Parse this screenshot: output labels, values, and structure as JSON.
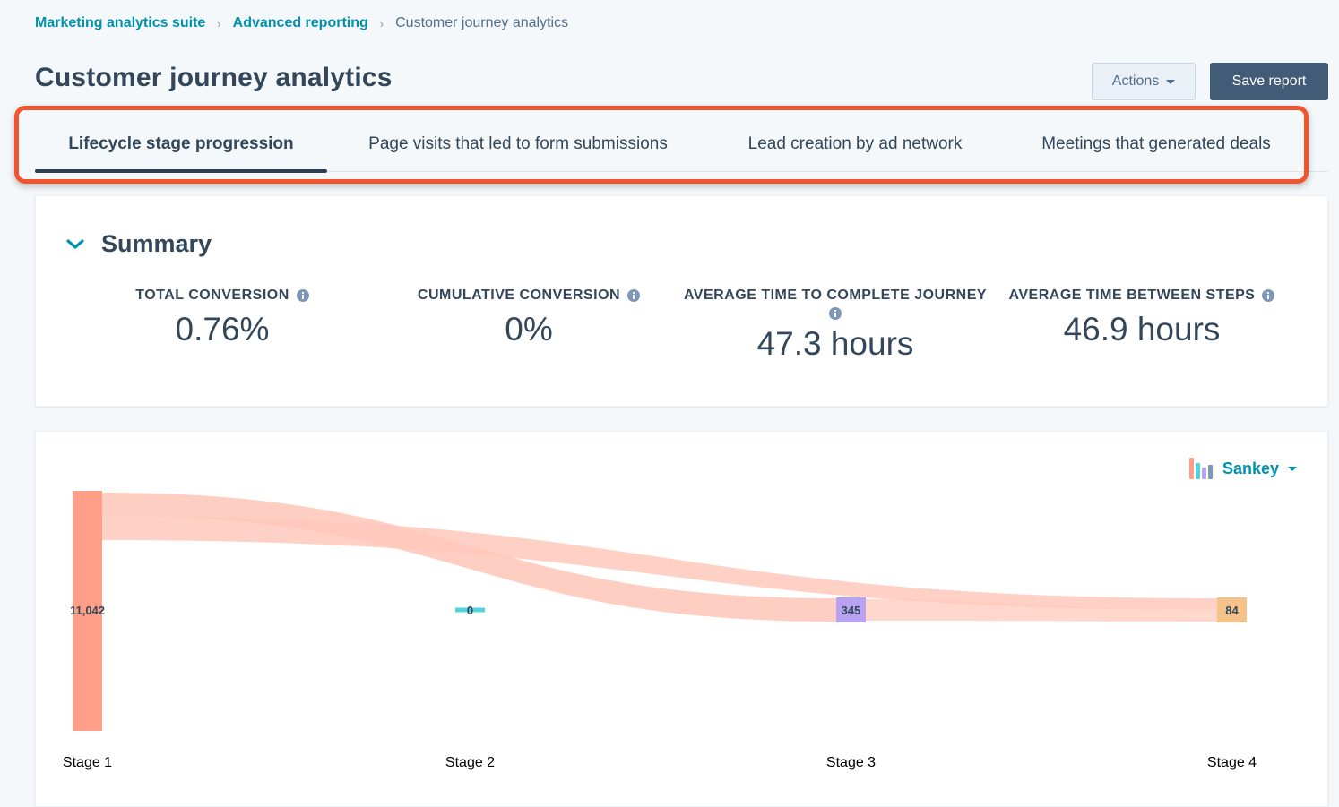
{
  "breadcrumb": {
    "items": [
      "Marketing analytics suite",
      "Advanced reporting"
    ],
    "current": "Customer journey analytics",
    "separator": "›"
  },
  "page": {
    "title": "Customer journey analytics"
  },
  "toolbar": {
    "actions_label": "Actions",
    "save_label": "Save report"
  },
  "tabs": [
    {
      "label": "Lifecycle stage progression",
      "active": true
    },
    {
      "label": "Page visits that led to form submissions",
      "active": false
    },
    {
      "label": "Lead creation by ad network",
      "active": false
    },
    {
      "label": "Meetings that generated deals",
      "active": false
    }
  ],
  "summary": {
    "title": "Summary",
    "metrics": [
      {
        "label": "TOTAL CONVERSION",
        "value": "0.76%"
      },
      {
        "label": "CUMULATIVE CONVERSION",
        "value": "0%"
      },
      {
        "label": "AVERAGE TIME TO COMPLETE JOURNEY",
        "value": "47.3 hours"
      },
      {
        "label": "AVERAGE TIME BETWEEN STEPS",
        "value": "46.9 hours"
      }
    ]
  },
  "chart_view": {
    "label": "Sankey"
  },
  "chart_data": {
    "type": "sankey",
    "stages": [
      {
        "name": "Stage 1",
        "value": 11042,
        "label": "11,042",
        "color": "#ff9f88"
      },
      {
        "name": "Stage 2",
        "value": 0,
        "label": "0",
        "color": "#51d3d9"
      },
      {
        "name": "Stage 3",
        "value": 345,
        "label": "345",
        "color": "#b9a2f2"
      },
      {
        "name": "Stage 4",
        "value": 84,
        "label": "84",
        "color": "#f5c28a"
      }
    ],
    "links": [
      {
        "from": "Stage 1",
        "to": "Stage 3"
      },
      {
        "from": "Stage 1",
        "to": "Stage 4"
      },
      {
        "from": "Stage 3",
        "to": "Stage 4"
      }
    ],
    "link_color": "#ffc9bc"
  },
  "colors": {
    "accent": "#0091ae",
    "primary_button": "#425b76",
    "highlight": "#f2542d"
  }
}
